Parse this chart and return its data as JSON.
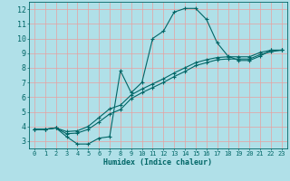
{
  "xlabel": "Humidex (Indice chaleur)",
  "bg_color": "#b0e0e8",
  "grid_color": "#e8a0a0",
  "line_color": "#006666",
  "axis_bg": "#b0e0e8",
  "xlim": [
    -0.5,
    23.5
  ],
  "ylim": [
    2.5,
    12.5
  ],
  "xticks": [
    0,
    1,
    2,
    3,
    4,
    5,
    6,
    7,
    8,
    9,
    10,
    11,
    12,
    13,
    14,
    15,
    16,
    17,
    18,
    19,
    20,
    21,
    22,
    23
  ],
  "yticks": [
    3,
    4,
    5,
    6,
    7,
    8,
    9,
    10,
    11,
    12
  ],
  "lines": [
    {
      "x": [
        0,
        1,
        2,
        3,
        4,
        5,
        6,
        7,
        8,
        9,
        10,
        11,
        12,
        13,
        14,
        15,
        16,
        17,
        18,
        19,
        20,
        21,
        22,
        23
      ],
      "y": [
        3.8,
        3.8,
        3.9,
        3.3,
        2.8,
        2.8,
        3.2,
        3.3,
        7.8,
        6.3,
        7.0,
        10.0,
        10.5,
        11.8,
        12.05,
        12.05,
        11.3,
        9.7,
        8.8,
        8.5,
        8.5,
        8.8,
        9.2,
        9.2
      ]
    },
    {
      "x": [
        0,
        1,
        2,
        3,
        4,
        5,
        6,
        7,
        8,
        9,
        10,
        11,
        12,
        13,
        14,
        15,
        16,
        17,
        18,
        19,
        20,
        21,
        22,
        23
      ],
      "y": [
        3.8,
        3.8,
        3.9,
        3.5,
        3.55,
        3.8,
        4.3,
        4.85,
        5.15,
        5.9,
        6.3,
        6.65,
        7.0,
        7.4,
        7.75,
        8.15,
        8.35,
        8.55,
        8.6,
        8.6,
        8.6,
        8.9,
        9.1,
        9.2
      ]
    },
    {
      "x": [
        0,
        1,
        2,
        3,
        4,
        5,
        6,
        7,
        8,
        9,
        10,
        11,
        12,
        13,
        14,
        15,
        16,
        17,
        18,
        19,
        20,
        21,
        22,
        23
      ],
      "y": [
        3.8,
        3.8,
        3.9,
        3.65,
        3.7,
        4.0,
        4.6,
        5.2,
        5.45,
        6.15,
        6.55,
        6.9,
        7.25,
        7.65,
        8.0,
        8.35,
        8.55,
        8.7,
        8.75,
        8.75,
        8.75,
        9.05,
        9.2,
        9.2
      ]
    }
  ]
}
